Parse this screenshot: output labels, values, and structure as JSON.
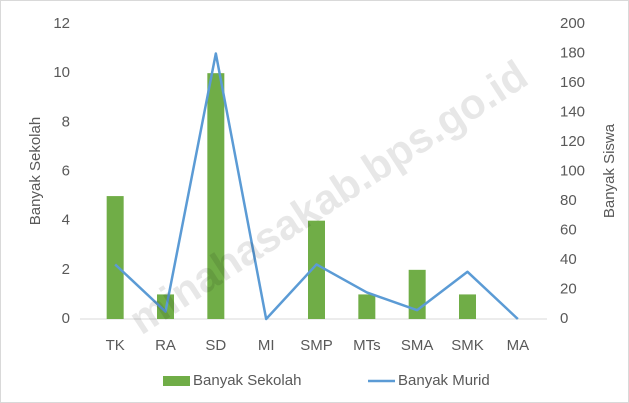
{
  "chart_data": {
    "type": "bar",
    "categories": [
      "TK",
      "RA",
      "SD",
      "MI",
      "SMP",
      "MTs",
      "SMA",
      "SMK",
      "MA"
    ],
    "series": [
      {
        "name": "Banyak Sekolah",
        "type": "bar",
        "color": "#70ad47",
        "values": [
          5,
          1,
          10,
          0,
          4,
          1,
          2,
          1,
          0
        ]
      },
      {
        "name": "Banyak Murid",
        "type": "line",
        "axis": "y2",
        "color": "#5b9bd5",
        "values": [
          37,
          5,
          180,
          0,
          37,
          18,
          6,
          32,
          0
        ]
      }
    ],
    "ylabel": "Banyak Sekolah",
    "y2label": "Banyak Siswa",
    "ylim": [
      0,
      12
    ],
    "yticks": [
      0,
      2,
      4,
      6,
      8,
      10,
      12
    ],
    "y2lim": [
      0,
      200
    ],
    "y2ticks": [
      0,
      20,
      40,
      60,
      80,
      100,
      120,
      140,
      160,
      180,
      200
    ],
    "grid": false,
    "legend": "bottom",
    "watermark": "minahasakab.bps.go.id"
  }
}
